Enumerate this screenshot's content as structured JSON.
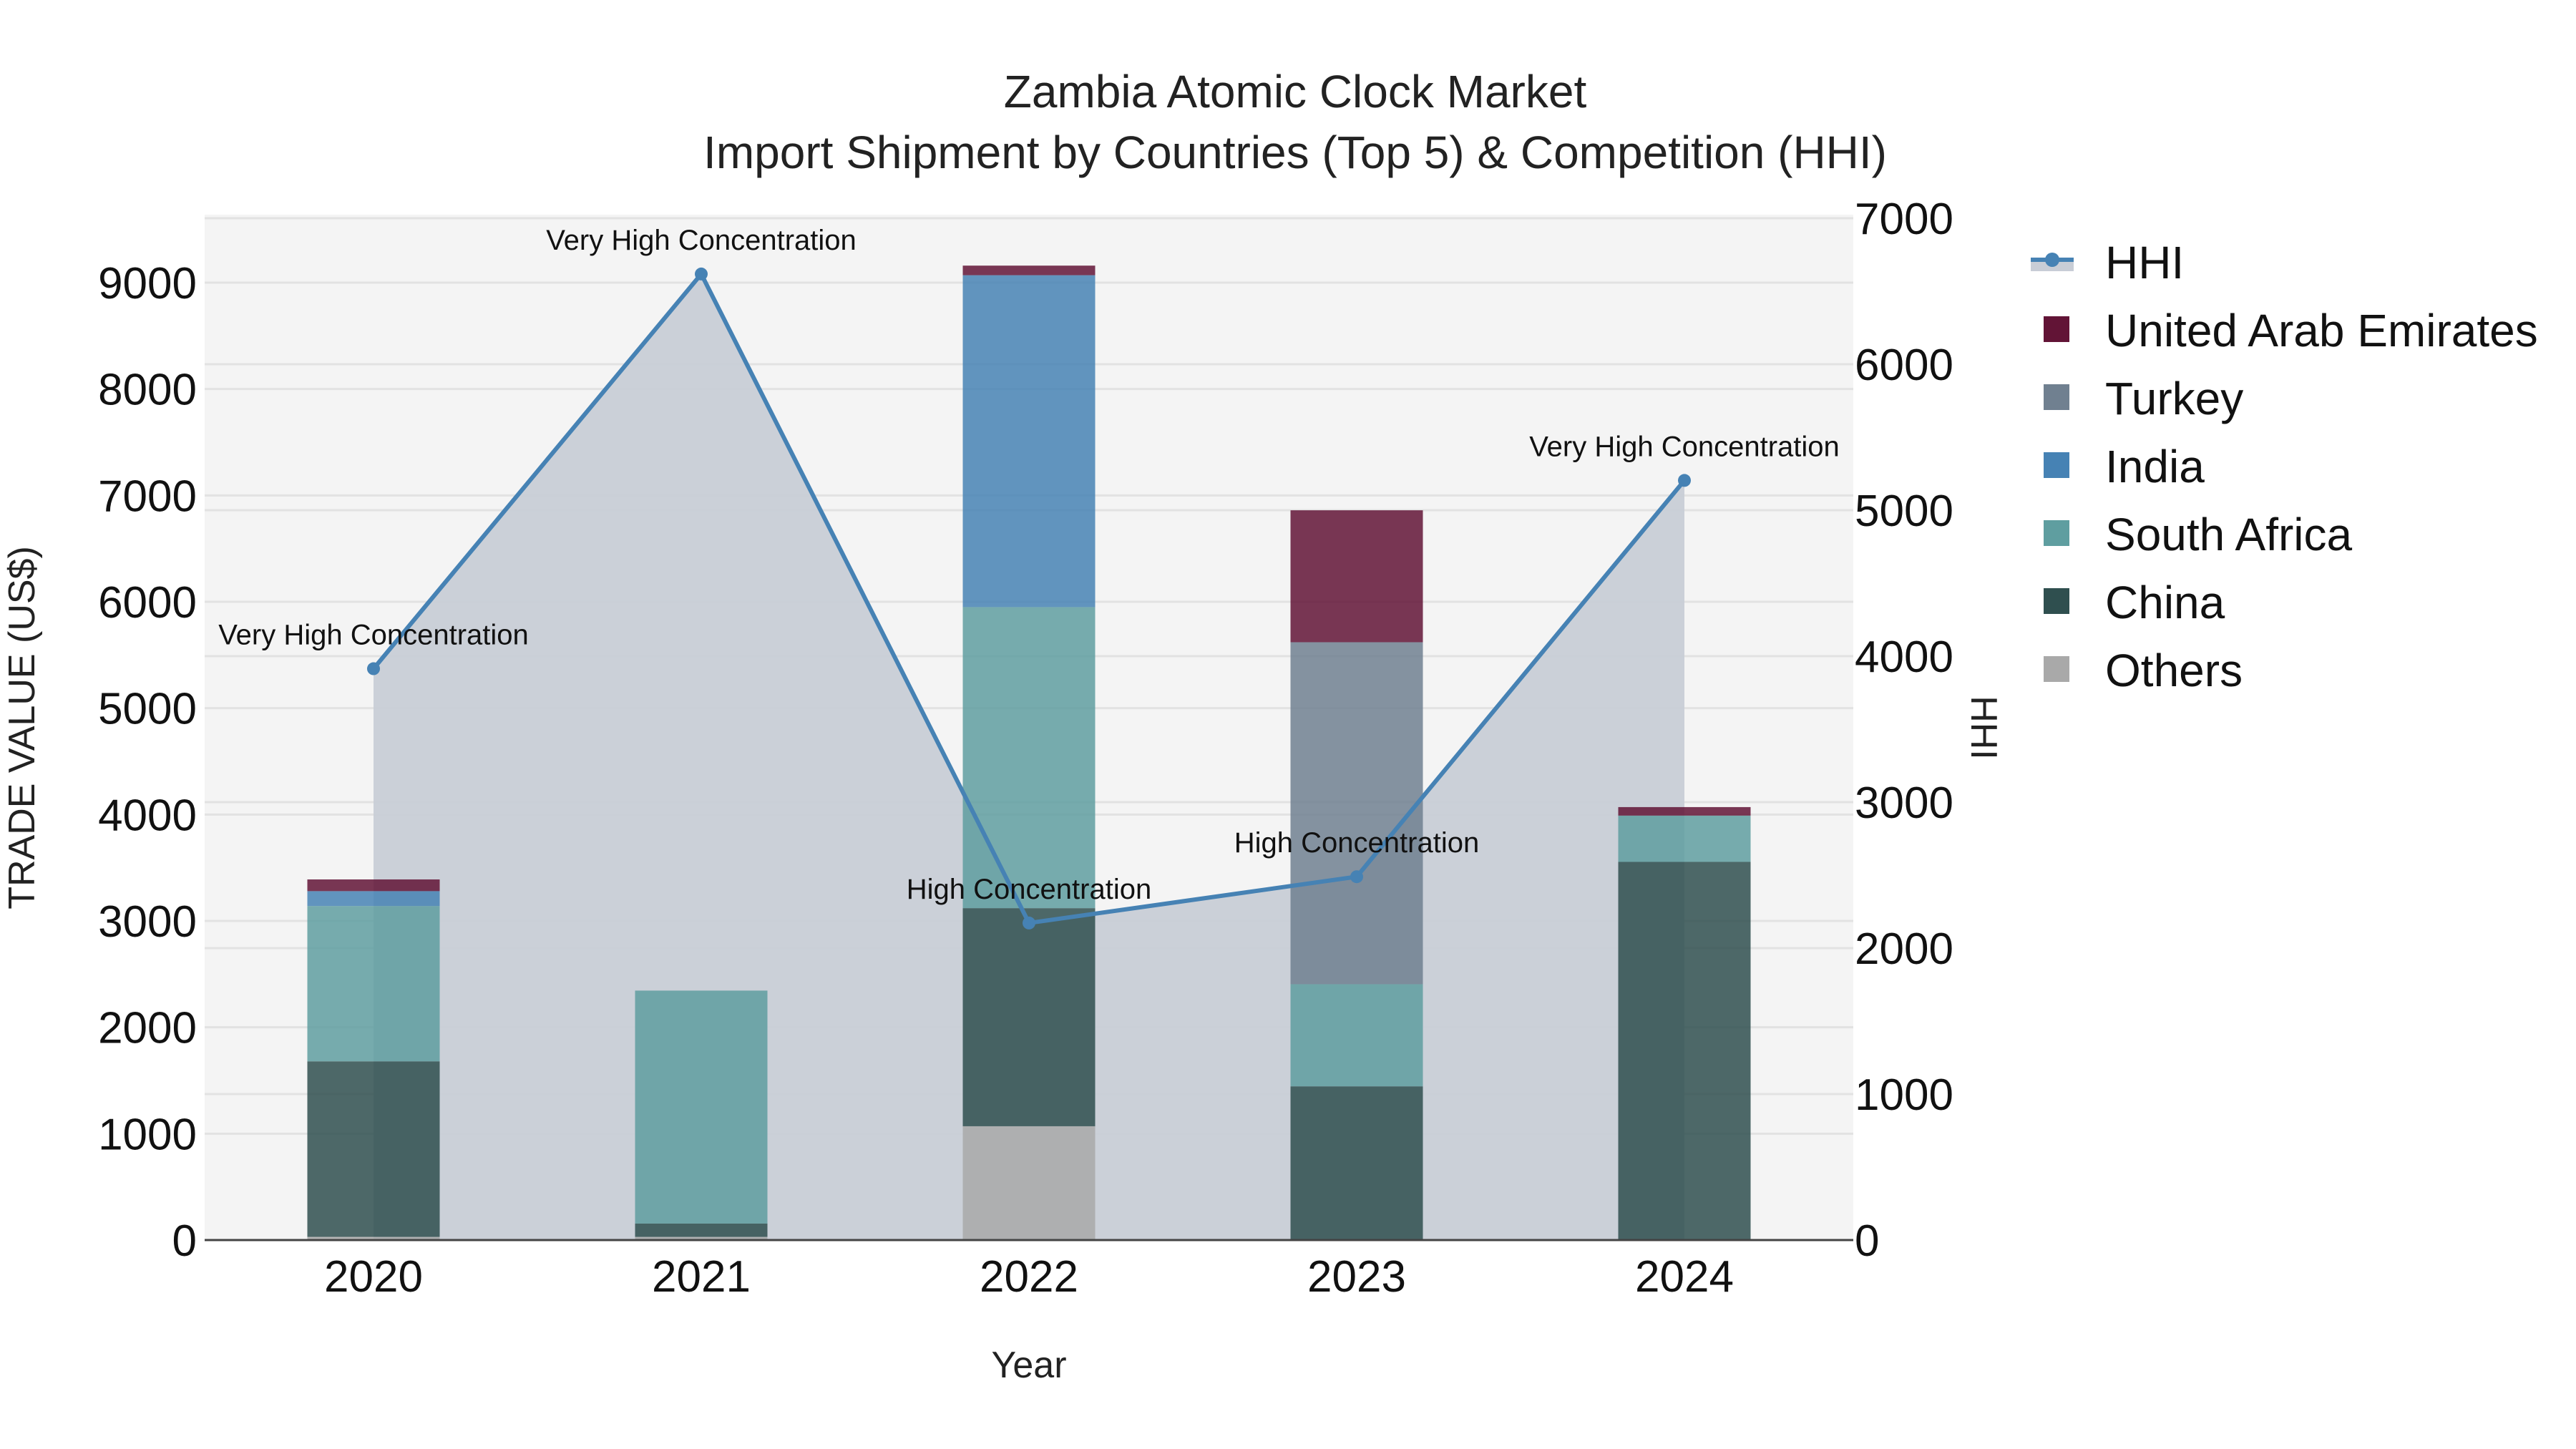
{
  "chart_data": {
    "type": "bar",
    "stacked": true,
    "title": "Zambia Atomic Clock Market",
    "subtitle": "Import Shipment by Countries (Top 5) & Competition (HHI)",
    "xlabel": "Year",
    "ylabel": "TRADE VALUE (US$)",
    "y2label": "HHI",
    "categories": [
      "2020",
      "2021",
      "2022",
      "2023",
      "2024"
    ],
    "ylim": [
      0,
      9600
    ],
    "y2lim": [
      0,
      7000
    ],
    "yticks": [
      0,
      1000,
      2000,
      3000,
      4000,
      5000,
      6000,
      7000,
      8000,
      9000
    ],
    "y2ticks": [
      0,
      1000,
      2000,
      3000,
      4000,
      5000,
      6000,
      7000
    ],
    "grid": true,
    "legend_position": "right",
    "series": [
      {
        "name": "Others",
        "color": "#A9A9A9",
        "values": [
          30,
          30,
          1070,
          0,
          0
        ]
      },
      {
        "name": "China",
        "color": "#2F4F4F",
        "values": [
          1650,
          125,
          2050,
          1445,
          3555
        ]
      },
      {
        "name": "South Africa",
        "color": "#5F9EA0",
        "values": [
          1460,
          2190,
          2830,
          960,
          435
        ]
      },
      {
        "name": "India",
        "color": "#4682B4",
        "values": [
          140,
          0,
          3120,
          0,
          0
        ]
      },
      {
        "name": "Turkey",
        "color": "#708090",
        "values": [
          0,
          0,
          0,
          3215,
          0
        ]
      },
      {
        "name": "United Arab Emirates",
        "color": "#621436",
        "values": [
          110,
          0,
          90,
          1240,
          80
        ]
      }
    ],
    "line_series": {
      "name": "HHI",
      "axis": "right",
      "color": "#4682B4",
      "fill": "tozeroy",
      "fill_color": "#C8CDD6",
      "values": [
        3914,
        6618,
        2172,
        2489,
        5204
      ],
      "annotations": [
        "Very High Concentration",
        "Very High Concentration",
        "High Concentration",
        "High Concentration",
        "Very High Concentration"
      ]
    }
  },
  "legend": {
    "items": [
      {
        "label": "HHI",
        "kind": "line",
        "color": "#4682B4"
      },
      {
        "label": "United Arab Emirates",
        "kind": "box",
        "color": "#621436"
      },
      {
        "label": "Turkey",
        "kind": "box",
        "color": "#708090"
      },
      {
        "label": "India",
        "kind": "box",
        "color": "#4682B4"
      },
      {
        "label": "South Africa",
        "kind": "box",
        "color": "#5F9EA0"
      },
      {
        "label": "China",
        "kind": "box",
        "color": "#2F4F4F"
      },
      {
        "label": "Others",
        "kind": "box",
        "color": "#A9A9A9"
      }
    ]
  }
}
